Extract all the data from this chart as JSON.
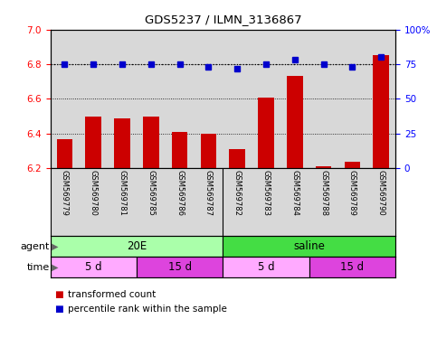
{
  "title": "GDS5237 / ILMN_3136867",
  "samples": [
    "GSM569779",
    "GSM569780",
    "GSM569781",
    "GSM569785",
    "GSM569786",
    "GSM569787",
    "GSM569782",
    "GSM569783",
    "GSM569784",
    "GSM569788",
    "GSM569789",
    "GSM569790"
  ],
  "transformed_counts": [
    6.37,
    6.5,
    6.49,
    6.5,
    6.41,
    6.4,
    6.31,
    6.61,
    6.73,
    6.21,
    6.24,
    6.85
  ],
  "percentile_ranks": [
    75,
    75,
    75,
    75,
    75,
    73,
    72,
    75,
    78,
    75,
    73,
    80
  ],
  "ylim_left": [
    6.2,
    7.0
  ],
  "ylim_right": [
    0,
    100
  ],
  "yticks_left": [
    6.2,
    6.4,
    6.6,
    6.8,
    7.0
  ],
  "yticks_right": [
    0,
    25,
    50,
    75,
    100
  ],
  "bar_color": "#cc0000",
  "dot_color": "#0000cc",
  "bar_bottom": 6.2,
  "agent_groups": [
    {
      "label": "20E",
      "start": 0,
      "end": 6,
      "color": "#aaffaa"
    },
    {
      "label": "saline",
      "start": 6,
      "end": 12,
      "color": "#44dd44"
    }
  ],
  "time_groups": [
    {
      "label": "5 d",
      "start": 0,
      "end": 3,
      "color": "#ffaaff"
    },
    {
      "label": "15 d",
      "start": 3,
      "end": 6,
      "color": "#dd44dd"
    },
    {
      "label": "5 d",
      "start": 6,
      "end": 9,
      "color": "#ffaaff"
    },
    {
      "label": "15 d",
      "start": 9,
      "end": 12,
      "color": "#dd44dd"
    }
  ],
  "agent_label": "agent",
  "time_label": "time",
  "legend_bar_label": "transformed count",
  "legend_dot_label": "percentile rank within the sample",
  "dotted_line_y": 6.8,
  "background_color": "#ffffff",
  "plot_bg_color": "#d8d8d8"
}
